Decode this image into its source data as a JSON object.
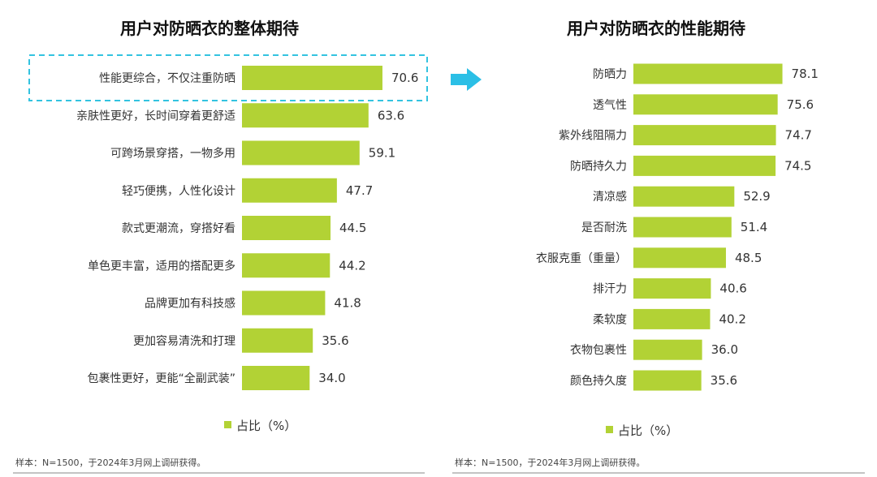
{
  "chart_data": [
    {
      "type": "bar",
      "orientation": "horizontal",
      "title": "用户对防晒衣的整体期待",
      "categories": [
        "性能更综合，不仅注重防晒",
        "亲肤性更好，长时间穿着更舒适",
        "可跨场景穿搭，一物多用",
        "轻巧便携，人性化设计",
        "款式更潮流，穿搭好看",
        "单色更丰富，适用的搭配更多",
        "品牌更加有科技感",
        "更加容易清洗和打理",
        "包裹性更好，更能“全副武装”"
      ],
      "values_text": [
        "70.6",
        "63.6",
        "59.1",
        "47.7",
        "44.5",
        "44.2",
        "41.8",
        "35.6",
        "34.0"
      ],
      "values": [
        70.6,
        63.6,
        59.1,
        47.7,
        44.5,
        44.2,
        41.8,
        35.6,
        34.0
      ],
      "legend": "占比（%）",
      "highlighted_category_index": 0,
      "note": "样本：N=1500，于2024年3月网上调研获得。",
      "grid": false
    },
    {
      "type": "bar",
      "orientation": "horizontal",
      "title": "用户对防晒衣的性能期待",
      "categories": [
        "防晒力",
        "透气性",
        "紫外线阻隔力",
        "防晒持久力",
        "清凉感",
        "是否耐洗",
        "衣服克重（重量）",
        "排汗力",
        "柔软度",
        "衣物包裹性",
        "颜色持久度"
      ],
      "values_text": [
        "78.1",
        "75.6",
        "74.7",
        "74.5",
        "52.9",
        "51.4",
        "48.5",
        "40.6",
        "40.2",
        "36.0",
        "35.6"
      ],
      "values": [
        78.1,
        75.6,
        74.7,
        74.5,
        52.9,
        51.4,
        48.5,
        40.6,
        40.2,
        36.0,
        35.6
      ],
      "legend": "占比（%）",
      "note": "样本：N=1500，于2024年3月网上调研获得。",
      "grid": false
    }
  ],
  "colors": {
    "bar": "#b2d235",
    "highlight_border": "#33c3e0",
    "arrow": "#2bbfe6",
    "note_rule": "#888888"
  }
}
